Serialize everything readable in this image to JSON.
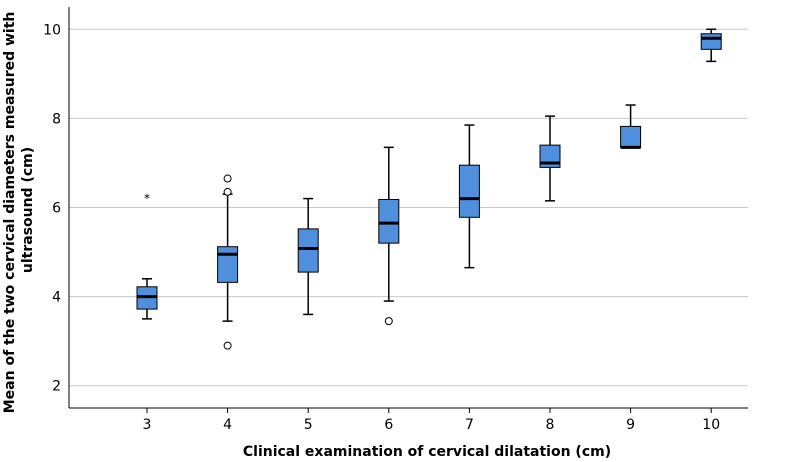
{
  "chart_data": {
    "type": "boxplot",
    "xlabel": "Clinical examination of cervical dilatation (cm)",
    "ylabel_line1": "Mean of the two cervical diameters measured with",
    "ylabel_line2": "ultrasound (cm)",
    "ylim": [
      1.5,
      10.5
    ],
    "yticks": [
      2,
      4,
      6,
      8,
      10
    ],
    "grid": true,
    "box_color": "#4f8fdb",
    "categories": [
      "3",
      "4",
      "5",
      "6",
      "7",
      "8",
      "9",
      "10"
    ],
    "boxes": [
      {
        "category": "3",
        "min": 3.5,
        "q1": 3.72,
        "median": 4.0,
        "q3": 4.22,
        "max": 4.4,
        "outliers": [],
        "extremes": [
          6.25
        ]
      },
      {
        "category": "4",
        "min": 3.45,
        "q1": 4.32,
        "median": 4.95,
        "q3": 5.12,
        "max": 6.3,
        "outliers": [
          6.65,
          6.35,
          2.9
        ],
        "extremes": []
      },
      {
        "category": "5",
        "min": 3.6,
        "q1": 4.55,
        "median": 5.08,
        "q3": 5.52,
        "max": 6.2,
        "outliers": [],
        "extremes": []
      },
      {
        "category": "6",
        "min": 3.9,
        "q1": 5.2,
        "median": 5.65,
        "q3": 6.18,
        "max": 7.35,
        "outliers": [
          3.45
        ],
        "extremes": []
      },
      {
        "category": "7",
        "min": 4.65,
        "q1": 5.78,
        "median": 6.2,
        "q3": 6.95,
        "max": 7.85,
        "outliers": [],
        "extremes": []
      },
      {
        "category": "8",
        "min": 6.15,
        "q1": 6.9,
        "median": 7.0,
        "q3": 7.4,
        "max": 8.05,
        "outliers": [],
        "extremes": []
      },
      {
        "category": "9",
        "min": 7.35,
        "q1": 7.35,
        "median": 7.35,
        "q3": 7.82,
        "max": 8.3,
        "outliers": [],
        "extremes": []
      },
      {
        "category": "10",
        "min": 9.28,
        "q1": 9.55,
        "median": 9.8,
        "q3": 9.9,
        "max": 10.0,
        "outliers": [],
        "extremes": []
      }
    ]
  }
}
